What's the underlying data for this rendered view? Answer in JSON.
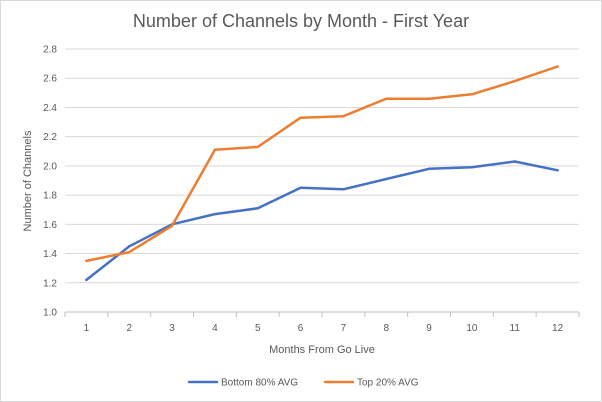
{
  "chart_data": {
    "type": "line",
    "title": "Number of Channels by Month - First Year",
    "xlabel": "Months From Go Live",
    "ylabel": "Number of Channels",
    "categories": [
      "1",
      "2",
      "3",
      "4",
      "5",
      "6",
      "7",
      "8",
      "9",
      "10",
      "11",
      "12"
    ],
    "ylim": [
      1.0,
      2.8
    ],
    "yticks": [
      "1.0",
      "1.2",
      "1.4",
      "1.6",
      "1.8",
      "2.0",
      "2.2",
      "2.4",
      "2.6",
      "2.8"
    ],
    "grid": true,
    "legend_position": "bottom",
    "series": [
      {
        "name": "Bottom 80% AVG",
        "color": "#4472C4",
        "values": [
          1.22,
          1.45,
          1.6,
          1.67,
          1.71,
          1.85,
          1.84,
          1.91,
          1.98,
          1.99,
          2.03,
          1.97
        ]
      },
      {
        "name": "Top 20% AVG",
        "color": "#ED7D31",
        "values": [
          1.35,
          1.41,
          1.59,
          2.11,
          2.13,
          2.33,
          2.34,
          2.46,
          2.46,
          2.49,
          2.58,
          2.68
        ]
      }
    ]
  }
}
